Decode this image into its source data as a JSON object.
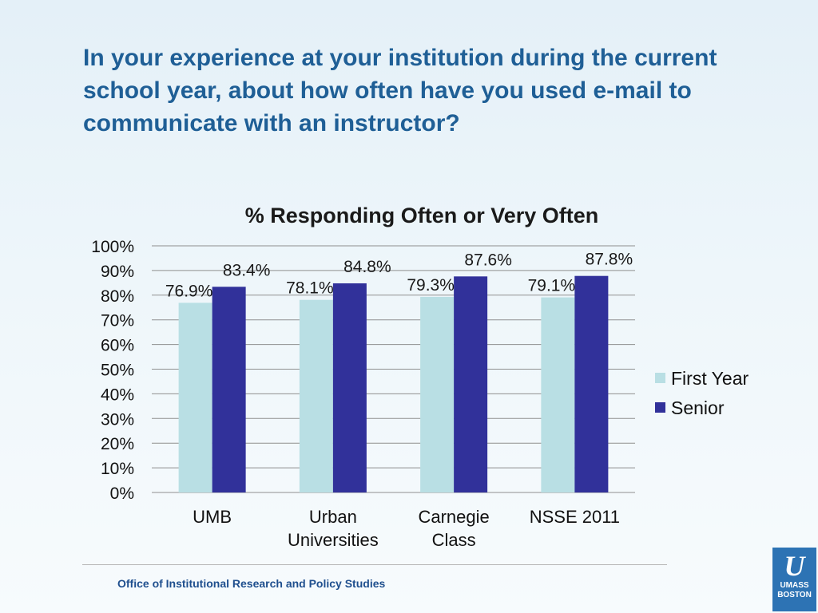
{
  "slide": {
    "title": "In your experience at your institution during the current school year, about how often have you used e-mail to communicate with an instructor?",
    "footer": "Office of Institutional Research and Policy Studies",
    "logo": {
      "glyph": "U",
      "line1": "UMASS",
      "line2": "BOSTON"
    }
  },
  "colors": {
    "title": "#1f5f96",
    "first_year": "#b9dfe4",
    "senior": "#31319a",
    "footer": "#1f4f8e",
    "logo_bg": "#2d73b4"
  },
  "chart_data": {
    "type": "bar",
    "title": "% Responding Often or Very Often",
    "categories": [
      [
        "UMB"
      ],
      [
        "Urban",
        "Universities"
      ],
      [
        "Carnegie",
        "Class"
      ],
      [
        "NSSE 2011"
      ]
    ],
    "series": [
      {
        "name": "First Year",
        "values": [
          76.9,
          78.1,
          79.3,
          79.1
        ],
        "labels": [
          "76.9%",
          "78.1%",
          "79.3%",
          "79.1%"
        ]
      },
      {
        "name": "Senior",
        "values": [
          83.4,
          84.8,
          87.6,
          87.8
        ],
        "labels": [
          "83.4%",
          "84.8%",
          "87.6%",
          "87.8%"
        ]
      }
    ],
    "ylim": [
      0,
      100
    ],
    "yticks": [
      "0%",
      "10%",
      "20%",
      "30%",
      "40%",
      "50%",
      "60%",
      "70%",
      "80%",
      "90%",
      "100%"
    ],
    "grid": true,
    "legend_position": "right"
  }
}
